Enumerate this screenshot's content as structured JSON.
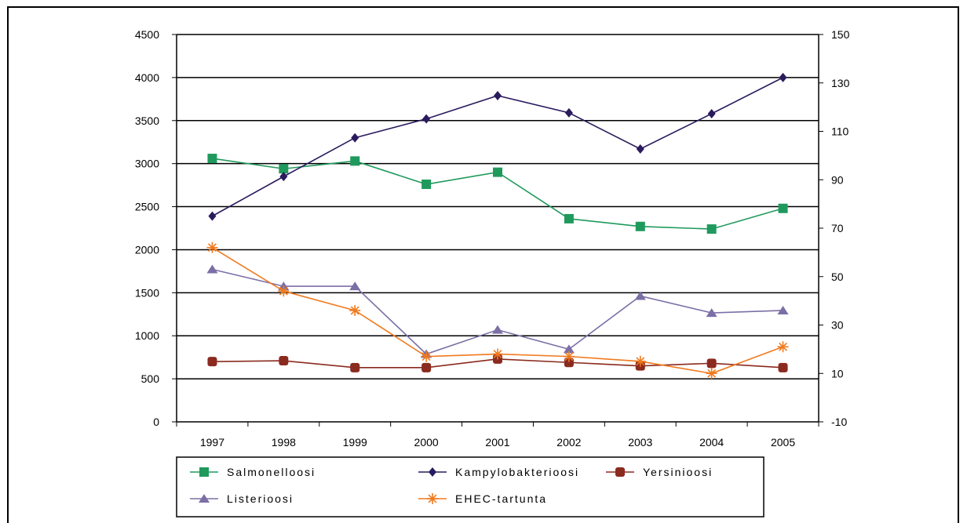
{
  "chart_data": {
    "type": "line",
    "x": [
      "1997",
      "1998",
      "1999",
      "2000",
      "2001",
      "2002",
      "2003",
      "2004",
      "2005"
    ],
    "y_left": {
      "min": 0,
      "max": 4500,
      "step": 500,
      "ticks": [
        "0",
        "500",
        "1000",
        "1500",
        "2000",
        "2500",
        "3000",
        "3500",
        "4000",
        "4500"
      ]
    },
    "y_right": {
      "min": -10,
      "max": 150,
      "step": 20,
      "ticks": [
        "-10",
        "10",
        "30",
        "50",
        "70",
        "90",
        "110",
        "130",
        "150"
      ]
    },
    "grid": true,
    "legend_position": "bottom",
    "series": [
      {
        "name": "Salmonelloosi",
        "axis": "left",
        "color": "#1f9a5c",
        "marker": "square",
        "values": [
          3060,
          2940,
          3030,
          2760,
          2900,
          2360,
          2270,
          2240,
          2480
        ]
      },
      {
        "name": "Kampylobakterioosi",
        "axis": "left",
        "color": "#2a1a5e",
        "marker": "diamond",
        "values": [
          2390,
          2850,
          3300,
          3520,
          3790,
          3590,
          3170,
          3580,
          4000
        ]
      },
      {
        "name": "Yersinioosi",
        "axis": "left",
        "color": "#8b2a1f",
        "marker": "circle",
        "values": [
          700,
          710,
          630,
          630,
          730,
          690,
          650,
          680,
          630
        ]
      },
      {
        "name": "Listerioosi",
        "axis": "right",
        "color": "#7b6fa6",
        "marker": "triangle",
        "values": [
          53,
          46,
          46,
          18,
          28,
          20,
          42,
          35,
          36
        ]
      },
      {
        "name": "EHEC-tartunta",
        "axis": "right",
        "color": "#f07a1e",
        "marker": "asterisk",
        "values": [
          62,
          44,
          36,
          17,
          18,
          17,
          15,
          10,
          21
        ]
      }
    ]
  }
}
